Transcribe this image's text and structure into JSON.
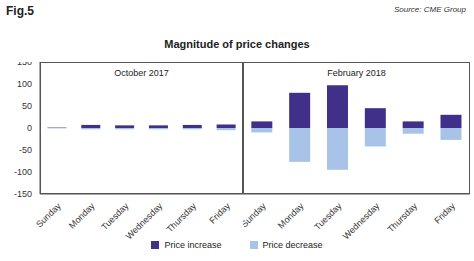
{
  "figure_label": "Fig.5",
  "source": "Source: CME Group",
  "title": "Magnitude of price changes",
  "chart_data": [
    {
      "type": "bar",
      "title": "October 2017",
      "categories": [
        "Sunday",
        "Monday",
        "Tuesday",
        "Wednesday",
        "Thursday",
        "Friday"
      ],
      "series": [
        {
          "name": "Price increase",
          "color": "#40308a",
          "values": [
            1,
            7,
            6,
            6,
            7,
            8
          ]
        },
        {
          "name": "Price decrease",
          "color": "#a8c3e8",
          "values": [
            -1,
            -3,
            -3,
            -3,
            -3,
            -5
          ]
        }
      ],
      "ylim": [
        -150,
        150
      ],
      "yticks": [
        -150,
        -100,
        -50,
        0,
        50,
        100,
        150
      ],
      "stacked": true,
      "grid": false
    },
    {
      "type": "bar",
      "title": "February 2018",
      "categories": [
        "Sunday",
        "Monday",
        "Tuesday",
        "Wednesday",
        "Thursday",
        "Friday"
      ],
      "series": [
        {
          "name": "Price increase",
          "color": "#40308a",
          "values": [
            15,
            80,
            97,
            45,
            15,
            30
          ]
        },
        {
          "name": "Price decrease",
          "color": "#a8c3e8",
          "values": [
            -10,
            -77,
            -95,
            -42,
            -13,
            -27
          ]
        }
      ],
      "ylim": [
        -150,
        150
      ],
      "yticks": [
        -150,
        -100,
        -50,
        0,
        50,
        100,
        150
      ],
      "stacked": true,
      "grid": false
    }
  ]
}
